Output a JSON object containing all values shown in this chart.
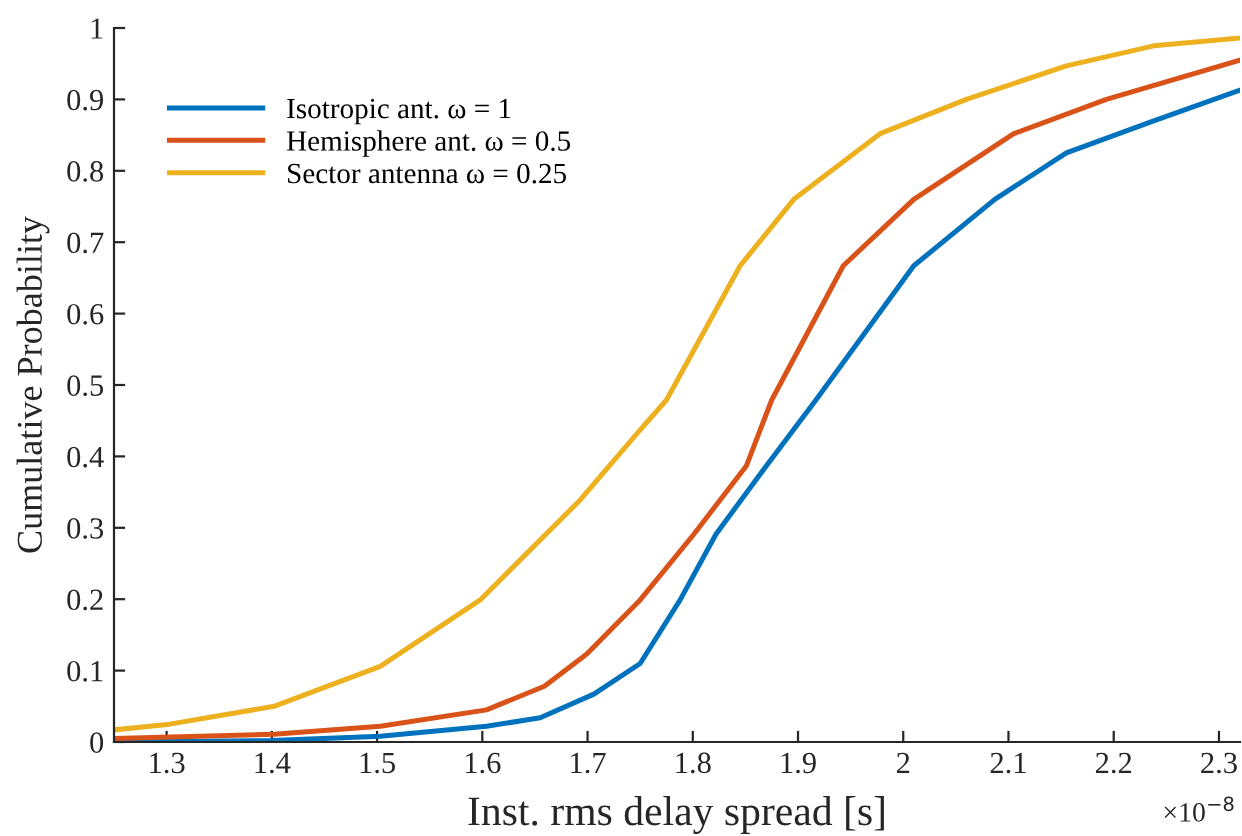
{
  "chart_data": {
    "type": "line",
    "xlabel": "Inst. rms delay spread [s]",
    "ylabel": "Cumulative Probability",
    "xlim": [
      1.25,
      2.32
    ],
    "ylim": [
      0,
      1
    ],
    "xticks": [
      1.3,
      1.4,
      1.5,
      1.6,
      1.7,
      1.8,
      1.9,
      2,
      2.1,
      2.2,
      2.3
    ],
    "yticks": [
      0,
      0.1,
      0.2,
      0.3,
      0.4,
      0.5,
      0.6,
      0.7,
      0.8,
      0.9,
      1
    ],
    "grid": false,
    "legend": "top left",
    "marker": "none",
    "line_style": "solid",
    "annotations": [
      "×10$^{−8}$"
    ],
    "series": [
      {
        "name": "Isotropic ant. ω = 1",
        "color": "#0072bd",
        "x": [
          1.25,
          1.4,
          1.503,
          1.604,
          1.655,
          1.706,
          1.75,
          1.788,
          1.822,
          1.87,
          1.917,
          2.01,
          2.087,
          2.155,
          2.238,
          2.32
        ],
        "values": [
          0,
          0.002,
          0.008,
          0.022,
          0.034,
          0.067,
          0.11,
          0.199,
          0.291,
          0.387,
          0.479,
          0.667,
          0.76,
          0.825,
          0.87,
          0.913
        ]
      },
      {
        "name": "Hemisphere ant. ω = 0.5",
        "color": "#d95319",
        "x": [
          1.25,
          1.402,
          1.503,
          1.604,
          1.659,
          1.699,
          1.75,
          1.801,
          1.851,
          1.875,
          1.943,
          2.01,
          2.105,
          2.193,
          2.32
        ],
        "values": [
          0.005,
          0.011,
          0.022,
          0.045,
          0.078,
          0.123,
          0.199,
          0.291,
          0.387,
          0.479,
          0.667,
          0.76,
          0.852,
          0.9,
          0.955
        ]
      },
      {
        "name": "Sector antenna ω = 0.25",
        "color": "#edb120",
        "x": [
          1.25,
          1.303,
          1.402,
          1.503,
          1.598,
          1.693,
          1.75,
          1.775,
          1.845,
          1.896,
          1.978,
          2.06,
          2.155,
          2.238,
          2.32
        ],
        "values": [
          0.017,
          0.025,
          0.05,
          0.106,
          0.199,
          0.339,
          0.437,
          0.479,
          0.667,
          0.76,
          0.852,
          0.9,
          0.947,
          0.975,
          0.986
        ]
      }
    ]
  }
}
